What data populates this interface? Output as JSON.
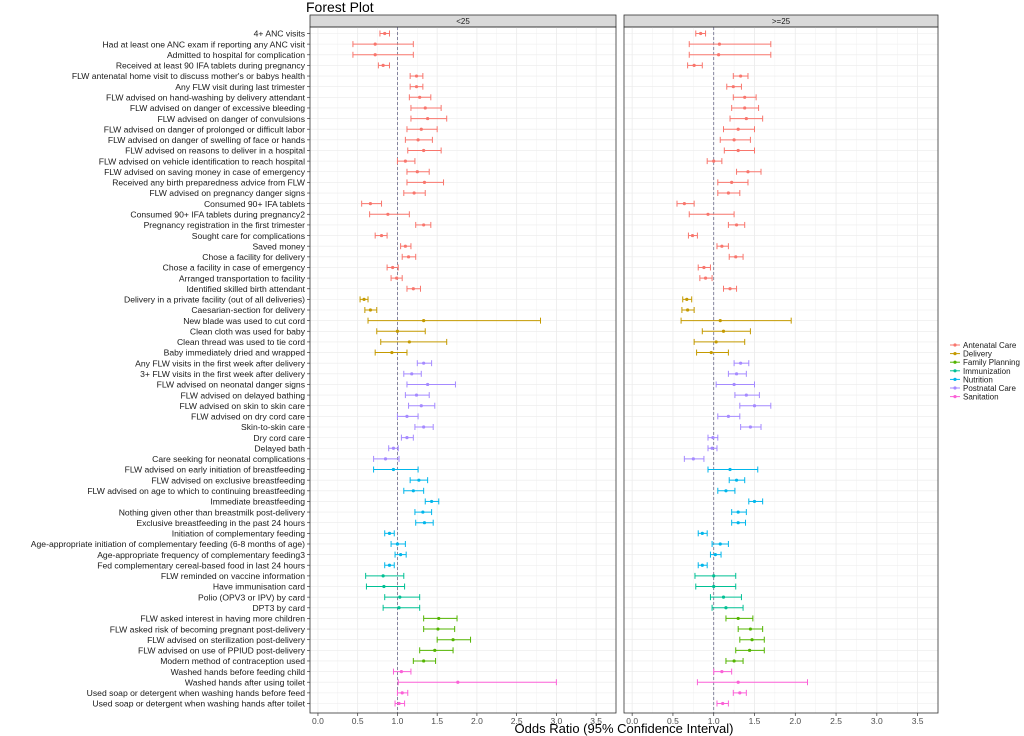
{
  "chart_data": {
    "type": "forest",
    "title": "Forest Plot",
    "xlabel": "Odds Ratio (95% Confidence Interval)",
    "ylabel": "",
    "xlim": [
      -0.1,
      3.75
    ],
    "x_ticks": [
      0.0,
      0.5,
      1.0,
      1.5,
      2.0,
      2.5,
      3.0,
      3.5
    ],
    "x_tick_labels": [
      "0.0",
      "0.5",
      "1.0",
      "1.5",
      "2.0",
      "2.5",
      "3.0",
      "3.5"
    ],
    "reference_line": 1.0,
    "grid": true,
    "legend_position": "right",
    "panels": [
      "<25",
      ">=25"
    ],
    "groups": [
      {
        "name": "Antenatal Care",
        "color": "#F8766D"
      },
      {
        "name": "Delivery",
        "color": "#C49A00"
      },
      {
        "name": "Family Planning",
        "color": "#53B400"
      },
      {
        "name": "Immunization",
        "color": "#00C094"
      },
      {
        "name": "Nutrition",
        "color": "#00B6EB"
      },
      {
        "name": "Postnatal Care",
        "color": "#A58AFF"
      },
      {
        "name": "Sanitation",
        "color": "#FB61D7"
      }
    ],
    "rows": [
      {
        "label": "4+ ANC visits",
        "group": 0,
        "est": [
          0.84,
          0.84
        ],
        "lo": [
          0.78,
          0.78
        ],
        "hi": [
          0.9,
          0.9
        ]
      },
      {
        "label": "Had at least one ANC exam if reporting any ANC visit",
        "group": 0,
        "est": [
          0.72,
          1.07
        ],
        "lo": [
          0.44,
          0.7
        ],
        "hi": [
          1.2,
          1.7
        ]
      },
      {
        "label": "Admitted to hospital for complication",
        "group": 0,
        "est": [
          0.72,
          1.06
        ],
        "lo": [
          0.44,
          0.7
        ],
        "hi": [
          1.2,
          1.7
        ]
      },
      {
        "label": "Received at least 90 IFA tablets during pregnancy",
        "group": 0,
        "est": [
          0.82,
          0.76
        ],
        "lo": [
          0.76,
          0.68
        ],
        "hi": [
          0.9,
          0.86
        ]
      },
      {
        "label": "FLW antenatal home visit to discuss mother's or babys health",
        "group": 0,
        "est": [
          1.24,
          1.33
        ],
        "lo": [
          1.16,
          1.24
        ],
        "hi": [
          1.32,
          1.42
        ]
      },
      {
        "label": "Any FLW visit during last trimester",
        "group": 0,
        "est": [
          1.24,
          1.24
        ],
        "lo": [
          1.16,
          1.16
        ],
        "hi": [
          1.32,
          1.34
        ]
      },
      {
        "label": "FLW advised on hand-washing by delivery attendant",
        "group": 0,
        "est": [
          1.28,
          1.38
        ],
        "lo": [
          1.15,
          1.24
        ],
        "hi": [
          1.42,
          1.52
        ]
      },
      {
        "label": "FLW advised on danger of excessive bleeding",
        "group": 0,
        "est": [
          1.35,
          1.38
        ],
        "lo": [
          1.17,
          1.22
        ],
        "hi": [
          1.55,
          1.55
        ]
      },
      {
        "label": "FLW advised on danger of convulsions",
        "group": 0,
        "est": [
          1.38,
          1.4
        ],
        "lo": [
          1.17,
          1.2
        ],
        "hi": [
          1.62,
          1.6
        ]
      },
      {
        "label": "FLW advised on danger of prolonged or difficult labor",
        "group": 0,
        "est": [
          1.3,
          1.3
        ],
        "lo": [
          1.12,
          1.12
        ],
        "hi": [
          1.5,
          1.5
        ]
      },
      {
        "label": "FLW advised on danger of swelling of face or hands",
        "group": 0,
        "est": [
          1.26,
          1.25
        ],
        "lo": [
          1.1,
          1.08
        ],
        "hi": [
          1.44,
          1.45
        ]
      },
      {
        "label": "FLW advised on reasons to deliver in a hospital",
        "group": 0,
        "est": [
          1.33,
          1.3
        ],
        "lo": [
          1.13,
          1.13
        ],
        "hi": [
          1.55,
          1.5
        ]
      },
      {
        "label": "FLW advised on vehicle identification to reach hospital",
        "group": 0,
        "est": [
          1.1,
          1.0
        ],
        "lo": [
          1.0,
          0.92
        ],
        "hi": [
          1.22,
          1.1
        ]
      },
      {
        "label": "FLW advised on saving money in case of emergency",
        "group": 0,
        "est": [
          1.25,
          1.42
        ],
        "lo": [
          1.12,
          1.28
        ],
        "hi": [
          1.4,
          1.58
        ]
      },
      {
        "label": "Received any birth preparedness advice from FLW",
        "group": 0,
        "est": [
          1.34,
          1.22
        ],
        "lo": [
          1.12,
          1.05
        ],
        "hi": [
          1.58,
          1.42
        ]
      },
      {
        "label": "FLW advised on pregnancy danger signs",
        "group": 0,
        "est": [
          1.21,
          1.18
        ],
        "lo": [
          1.08,
          1.05
        ],
        "hi": [
          1.35,
          1.32
        ]
      },
      {
        "label": "Consumed 90+ IFA tablets",
        "group": 0,
        "est": [
          0.66,
          0.64
        ],
        "lo": [
          0.55,
          0.55
        ],
        "hi": [
          0.8,
          0.76
        ]
      },
      {
        "label": "Consumed 90+ IFA tablets during pregnancy2",
        "group": 0,
        "est": [
          0.88,
          0.93
        ],
        "lo": [
          0.65,
          0.7
        ],
        "hi": [
          1.15,
          1.25
        ]
      },
      {
        "label": "Pregnancy registration in the first trimester",
        "group": 0,
        "est": [
          1.33,
          1.28
        ],
        "lo": [
          1.23,
          1.18
        ],
        "hi": [
          1.42,
          1.38
        ]
      },
      {
        "label": "Sought care for complications",
        "group": 0,
        "est": [
          0.8,
          0.74
        ],
        "lo": [
          0.72,
          0.69
        ],
        "hi": [
          0.87,
          0.8
        ]
      },
      {
        "label": "Saved money",
        "group": 0,
        "est": [
          1.1,
          1.1
        ],
        "lo": [
          1.04,
          1.04
        ],
        "hi": [
          1.17,
          1.18
        ]
      },
      {
        "label": "Chose a facility for delivery",
        "group": 0,
        "est": [
          1.14,
          1.27
        ],
        "lo": [
          1.06,
          1.19
        ],
        "hi": [
          1.23,
          1.36
        ]
      },
      {
        "label": "Chose a facility in case of emergency",
        "group": 0,
        "est": [
          0.94,
          0.88
        ],
        "lo": [
          0.87,
          0.81
        ],
        "hi": [
          1.01,
          0.96
        ]
      },
      {
        "label": "Arranged transportation to facility",
        "group": 0,
        "est": [
          0.99,
          0.9
        ],
        "lo": [
          0.92,
          0.83
        ],
        "hi": [
          1.06,
          0.98
        ]
      },
      {
        "label": "Identified skilled birth attendant",
        "group": 0,
        "est": [
          1.2,
          1.2
        ],
        "lo": [
          1.12,
          1.12
        ],
        "hi": [
          1.29,
          1.28
        ]
      },
      {
        "label": "Delivery in a private facility (out of all deliveries)",
        "group": 1,
        "est": [
          0.58,
          0.67
        ],
        "lo": [
          0.53,
          0.62
        ],
        "hi": [
          0.63,
          0.73
        ]
      },
      {
        "label": "Caesarian-section for delivery",
        "group": 1,
        "est": [
          0.66,
          0.68
        ],
        "lo": [
          0.59,
          0.61
        ],
        "hi": [
          0.74,
          0.76
        ]
      },
      {
        "label": "New blade was used to cut cord",
        "group": 1,
        "est": [
          1.33,
          1.08
        ],
        "lo": [
          0.63,
          0.6
        ],
        "hi": [
          2.8,
          1.95
        ]
      },
      {
        "label": "Clean cloth was used for baby",
        "group": 1,
        "est": [
          1.0,
          1.12
        ],
        "lo": [
          0.74,
          0.86
        ],
        "hi": [
          1.35,
          1.45
        ]
      },
      {
        "label": "Clean thread was used to tie cord",
        "group": 1,
        "est": [
          1.15,
          1.03
        ],
        "lo": [
          0.79,
          0.76
        ],
        "hi": [
          1.62,
          1.38
        ]
      },
      {
        "label": "Baby immediately dried and wrapped",
        "group": 1,
        "est": [
          0.93,
          0.97
        ],
        "lo": [
          0.72,
          0.79
        ],
        "hi": [
          1.12,
          1.18
        ]
      },
      {
        "label": "Any FLW visits in the first week after delivery",
        "group": 5,
        "est": [
          1.33,
          1.33
        ],
        "lo": [
          1.25,
          1.25
        ],
        "hi": [
          1.43,
          1.43
        ]
      },
      {
        "label": "3+ FLW visits in the first week after delivery",
        "group": 5,
        "est": [
          1.18,
          1.28
        ],
        "lo": [
          1.08,
          1.18
        ],
        "hi": [
          1.3,
          1.4
        ]
      },
      {
        "label": "FLW advised on neonatal danger signs",
        "group": 5,
        "est": [
          1.38,
          1.25
        ],
        "lo": [
          1.12,
          1.03
        ],
        "hi": [
          1.73,
          1.5
        ]
      },
      {
        "label": "FLW advised on delayed bathing",
        "group": 5,
        "est": [
          1.24,
          1.4
        ],
        "lo": [
          1.1,
          1.26
        ],
        "hi": [
          1.4,
          1.56
        ]
      },
      {
        "label": "FLW advised on skin to skin care",
        "group": 5,
        "est": [
          1.3,
          1.5
        ],
        "lo": [
          1.14,
          1.32
        ],
        "hi": [
          1.47,
          1.7
        ]
      },
      {
        "label": "FLW advised on dry cord care",
        "group": 5,
        "est": [
          1.12,
          1.18
        ],
        "lo": [
          1.0,
          1.05
        ],
        "hi": [
          1.26,
          1.32
        ]
      },
      {
        "label": "Skin-to-skin care",
        "group": 5,
        "est": [
          1.33,
          1.45
        ],
        "lo": [
          1.22,
          1.33
        ],
        "hi": [
          1.45,
          1.58
        ]
      },
      {
        "label": "Dry cord care",
        "group": 5,
        "est": [
          1.12,
          0.99
        ],
        "lo": [
          1.05,
          0.93
        ],
        "hi": [
          1.2,
          1.05
        ]
      },
      {
        "label": "Delayed bath",
        "group": 5,
        "est": [
          0.95,
          0.98
        ],
        "lo": [
          0.89,
          0.93
        ],
        "hi": [
          1.01,
          1.04
        ]
      },
      {
        "label": "Care seeking for neonatal complications",
        "group": 5,
        "est": [
          0.85,
          0.75
        ],
        "lo": [
          0.7,
          0.64
        ],
        "hi": [
          1.02,
          0.88
        ]
      },
      {
        "label": "FLW advised on early initiation of breastfeeding",
        "group": 4,
        "est": [
          0.95,
          1.2
        ],
        "lo": [
          0.7,
          0.93
        ],
        "hi": [
          1.26,
          1.54
        ]
      },
      {
        "label": "FLW advised on exclusive breastfeeding",
        "group": 4,
        "est": [
          1.27,
          1.28
        ],
        "lo": [
          1.16,
          1.19
        ],
        "hi": [
          1.38,
          1.38
        ]
      },
      {
        "label": "FLW advised on age to which to continuing breastfeeding",
        "group": 4,
        "est": [
          1.2,
          1.15
        ],
        "lo": [
          1.08,
          1.05
        ],
        "hi": [
          1.33,
          1.26
        ]
      },
      {
        "label": "Immediate breastfeeding",
        "group": 4,
        "est": [
          1.43,
          1.5
        ],
        "lo": [
          1.35,
          1.43
        ],
        "hi": [
          1.52,
          1.6
        ]
      },
      {
        "label": "Nothing given other than breastmilk post-delivery",
        "group": 4,
        "est": [
          1.32,
          1.3
        ],
        "lo": [
          1.22,
          1.22
        ],
        "hi": [
          1.43,
          1.4
        ]
      },
      {
        "label": "Exclusive breastfeeding in the past 24 hours",
        "group": 4,
        "est": [
          1.34,
          1.3
        ],
        "lo": [
          1.23,
          1.22
        ],
        "hi": [
          1.45,
          1.39
        ]
      },
      {
        "label": "Initiation of complementary feeding",
        "group": 4,
        "est": [
          0.9,
          0.86
        ],
        "lo": [
          0.84,
          0.81
        ],
        "hi": [
          0.96,
          0.92
        ]
      },
      {
        "label": "Age-appropriate initiation of complementary feeding (6-8 months of age)",
        "group": 4,
        "est": [
          1.0,
          1.08
        ],
        "lo": [
          0.92,
          0.98
        ],
        "hi": [
          1.1,
          1.18
        ]
      },
      {
        "label": "Age-appropriate frequency of complementary feeding3",
        "group": 4,
        "est": [
          1.04,
          1.02
        ],
        "lo": [
          0.97,
          0.96
        ],
        "hi": [
          1.11,
          1.09
        ]
      },
      {
        "label": "Fed complementary cereal-based food in last 24 hours",
        "group": 4,
        "est": [
          0.9,
          0.86
        ],
        "lo": [
          0.84,
          0.81
        ],
        "hi": [
          0.96,
          0.92
        ]
      },
      {
        "label": "FLW reminded on vaccine information",
        "group": 3,
        "est": [
          0.82,
          1.0
        ],
        "lo": [
          0.6,
          0.77
        ],
        "hi": [
          1.08,
          1.27
        ]
      },
      {
        "label": "Have immunisation card",
        "group": 3,
        "est": [
          0.83,
          1.0
        ],
        "lo": [
          0.61,
          0.78
        ],
        "hi": [
          1.09,
          1.27
        ]
      },
      {
        "label": "Polio (OPV3 or IPV) by card",
        "group": 3,
        "est": [
          1.03,
          1.12
        ],
        "lo": [
          0.84,
          0.96
        ],
        "hi": [
          1.28,
          1.34
        ]
      },
      {
        "label": "DPT3 by card",
        "group": 3,
        "est": [
          1.02,
          1.15
        ],
        "lo": [
          0.82,
          0.98
        ],
        "hi": [
          1.28,
          1.36
        ]
      },
      {
        "label": "FLW asked interest in having more children",
        "group": 2,
        "est": [
          1.52,
          1.3
        ],
        "lo": [
          1.33,
          1.15
        ],
        "hi": [
          1.75,
          1.48
        ]
      },
      {
        "label": "FLW asked risk of becoming pregnant post-delivery",
        "group": 2,
        "est": [
          1.51,
          1.45
        ],
        "lo": [
          1.33,
          1.3
        ],
        "hi": [
          1.72,
          1.6
        ]
      },
      {
        "label": "FLW advised on sterilization post-delivery",
        "group": 2,
        "est": [
          1.7,
          1.47
        ],
        "lo": [
          1.5,
          1.32
        ],
        "hi": [
          1.92,
          1.62
        ]
      },
      {
        "label": "FLW advised on use of PPIUD post-delivery",
        "group": 2,
        "est": [
          1.47,
          1.44
        ],
        "lo": [
          1.28,
          1.27
        ],
        "hi": [
          1.7,
          1.62
        ]
      },
      {
        "label": "Modern method of contraception used",
        "group": 2,
        "est": [
          1.33,
          1.25
        ],
        "lo": [
          1.2,
          1.15
        ],
        "hi": [
          1.48,
          1.36
        ]
      },
      {
        "label": "Washed hands before feeding child",
        "group": 6,
        "est": [
          1.05,
          1.1
        ],
        "lo": [
          0.95,
          1.0
        ],
        "hi": [
          1.17,
          1.22
        ]
      },
      {
        "label": "Washed hands after using toilet",
        "group": 6,
        "est": [
          1.76,
          1.3
        ],
        "lo": [
          1.01,
          0.8
        ],
        "hi": [
          3.0,
          2.15
        ]
      },
      {
        "label": "Used soap or detergent when washing hands before feed",
        "group": 6,
        "est": [
          1.06,
          1.32
        ],
        "lo": [
          1.0,
          1.24
        ],
        "hi": [
          1.13,
          1.4
        ]
      },
      {
        "label": "Used soap or detergent when washing hands after toilet",
        "group": 6,
        "est": [
          1.02,
          1.11
        ],
        "lo": [
          0.97,
          1.04
        ],
        "hi": [
          1.09,
          1.18
        ]
      }
    ]
  }
}
